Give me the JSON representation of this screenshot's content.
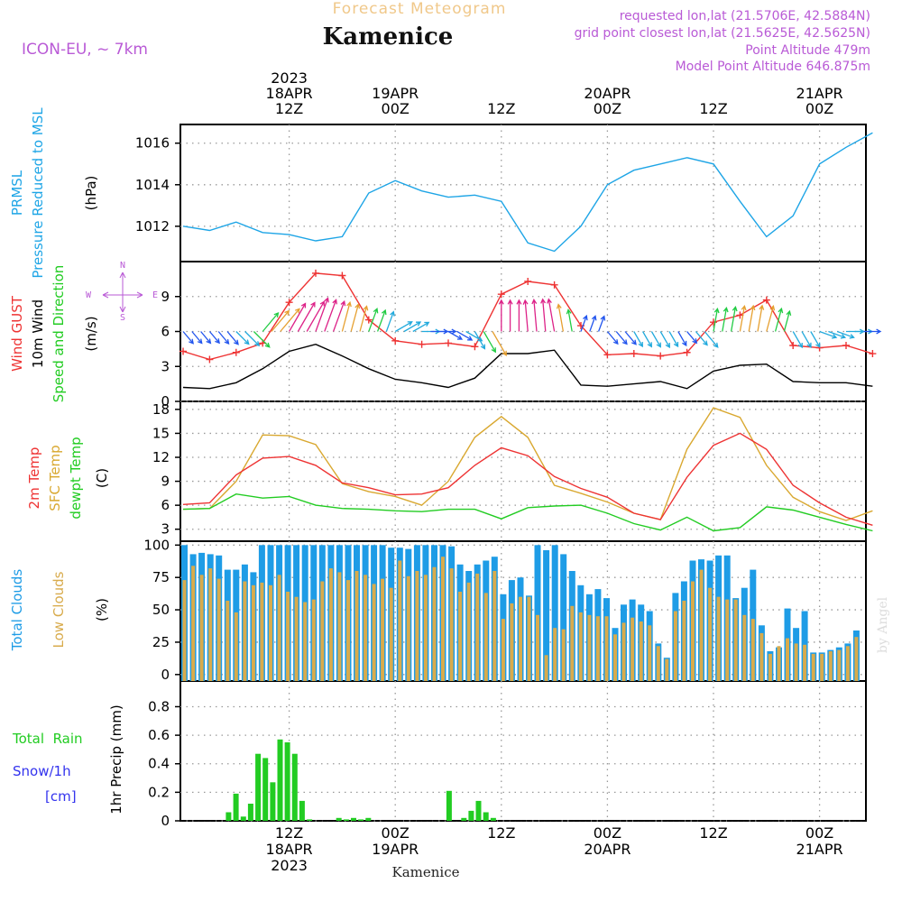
{
  "header": {
    "subtitle": "Forecast Meteogram",
    "title": "Kamenice",
    "model": "ICON-EU, ~ 7km",
    "requested": "requested lon,lat (21.5706E, 42.5884N)",
    "grid": "grid point closest lon,lat (21.5625E, 42.5625N)",
    "altitude": "Point Altitude 479m",
    "model_altitude": "Model Point Altitude 646.875m"
  },
  "time_axis": {
    "top": [
      {
        "l1": "2023",
        "l2": "18APR",
        "l3": "12Z"
      },
      {
        "l1": "",
        "l2": "19APR",
        "l3": "00Z"
      },
      {
        "l1": "",
        "l2": "",
        "l3": "12Z"
      },
      {
        "l1": "",
        "l2": "20APR",
        "l3": "00Z"
      },
      {
        "l1": "",
        "l2": "",
        "l3": "12Z"
      },
      {
        "l1": "",
        "l2": "21APR",
        "l3": "00Z"
      }
    ],
    "bottom": [
      {
        "l1": "12Z",
        "l2": "18APR",
        "l3": "2023"
      },
      {
        "l1": "00Z",
        "l2": "19APR",
        "l3": ""
      },
      {
        "l1": "12Z",
        "l2": "",
        "l3": ""
      },
      {
        "l1": "00Z",
        "l2": "20APR",
        "l3": ""
      },
      {
        "l1": "12Z",
        "l2": "",
        "l3": ""
      },
      {
        "l1": "00Z",
        "l2": "21APR",
        "l3": ""
      }
    ],
    "footer": "Kamenice"
  },
  "labels": {
    "p1": [
      "PRMSL",
      "Pressure Reduced to MSL",
      "(hPa)"
    ],
    "p2": [
      "Wind GUST",
      "10m Wind",
      "Speed and Direction",
      "(m/s)"
    ],
    "compass": {
      "n": "N",
      "s": "S",
      "w": "W",
      "e": "E"
    },
    "p3": [
      "2m Temp",
      "SFC Temp",
      "dewpt Temp",
      "(C)"
    ],
    "p4": [
      "Total Clouds",
      "Low Clouds",
      "(%)"
    ],
    "p5": {
      "rain": "Total  Rain",
      "snow": "Snow/1h",
      "unit": "[cm]",
      "axis": "1hr Precip (mm)"
    },
    "credit": "by Angel"
  },
  "colors": {
    "pressure": "#1ea5e6",
    "gust": "#ee3333",
    "wind": "#000000",
    "t2m": "#ee3333",
    "tsfc": "#d9a830",
    "dewpt": "#22cc22",
    "total_clouds": "#1e9ce6",
    "low_clouds": "#d8ab4c",
    "rain": "#22cc22",
    "snow": "#3333ee",
    "header_purple": "#b95ad6",
    "subtitle": "#f0c88a"
  },
  "chart_data": [
    {
      "type": "line",
      "name": "PRMSL",
      "ylabel": "(hPa)",
      "yticks": [
        1012,
        1014,
        1016
      ],
      "ylim": [
        1010.3,
        1016.9
      ],
      "x_hours": [
        0,
        3,
        6,
        9,
        12,
        15,
        18,
        21,
        24,
        27,
        30,
        33,
        36,
        39,
        42,
        45,
        48,
        51,
        54,
        57,
        60,
        63,
        66,
        69,
        72,
        75,
        78
      ],
      "series": [
        {
          "name": "PRMSL",
          "values": [
            1012.0,
            1011.8,
            1012.2,
            1011.7,
            1011.6,
            1011.3,
            1011.5,
            1013.6,
            1014.2,
            1013.7,
            1013.4,
            1013.5,
            1013.2,
            1011.2,
            1010.8,
            1012.0,
            1014.0,
            1014.7,
            1015.0,
            1015.3,
            1015.0,
            1013.2,
            1011.5,
            1012.5,
            1015.0,
            1015.8,
            1016.5
          ]
        }
      ]
    },
    {
      "type": "line",
      "name": "Wind",
      "ylabel": "(m/s)",
      "yticks": [
        0,
        3,
        6,
        9
      ],
      "ylim": [
        0,
        12
      ],
      "x_hours": [
        0,
        3,
        6,
        9,
        12,
        15,
        18,
        21,
        24,
        27,
        30,
        33,
        36,
        39,
        42,
        45,
        48,
        51,
        54,
        57,
        60,
        63,
        66,
        69,
        72,
        75,
        78
      ],
      "series": [
        {
          "name": "Wind GUST",
          "values": [
            4.3,
            3.6,
            4.2,
            5.0,
            8.5,
            11.0,
            10.8,
            7.0,
            5.2,
            4.9,
            5.0,
            4.7,
            9.2,
            10.3,
            10.0,
            6.5,
            4.0,
            4.1,
            3.9,
            4.2,
            6.8,
            7.4,
            8.7,
            4.8,
            4.6,
            4.8,
            4.1
          ]
        },
        {
          "name": "10m Wind",
          "values": [
            1.2,
            1.1,
            1.6,
            2.8,
            4.3,
            4.9,
            3.9,
            2.8,
            1.9,
            1.6,
            1.2,
            2.0,
            4.1,
            4.1,
            4.4,
            1.4,
            1.3,
            1.5,
            1.7,
            1.1,
            2.6,
            3.1,
            3.2,
            1.7,
            1.6,
            1.6,
            1.3
          ]
        }
      ],
      "wind_dir_deg": [
        320,
        320,
        315,
        220,
        210,
        200,
        195,
        200,
        240,
        270,
        300,
        330,
        180,
        175,
        170,
        200,
        320,
        330,
        330,
        320,
        190,
        190,
        195,
        330,
        290,
        270,
        280
      ]
    },
    {
      "type": "line",
      "name": "Temperature",
      "ylabel": "(C)",
      "yticks": [
        3,
        6,
        9,
        12,
        15,
        18
      ],
      "ylim": [
        1.5,
        19
      ],
      "x_hours": [
        0,
        3,
        6,
        9,
        12,
        15,
        18,
        21,
        24,
        27,
        30,
        33,
        36,
        39,
        42,
        45,
        48,
        51,
        54,
        57,
        60,
        63,
        66,
        69,
        72,
        75,
        78
      ],
      "series": [
        {
          "name": "2m Temp",
          "values": [
            6.1,
            6.3,
            9.8,
            11.9,
            12.1,
            11.0,
            8.8,
            8.2,
            7.3,
            7.4,
            8.2,
            11.0,
            13.2,
            12.2,
            9.6,
            8.1,
            7.0,
            5.0,
            4.2,
            9.5,
            13.5,
            15.0,
            13.0,
            8.5,
            6.3,
            4.5,
            3.5
          ]
        },
        {
          "name": "SFC Temp",
          "values": [
            5.5,
            5.6,
            9.0,
            14.8,
            14.7,
            13.6,
            8.7,
            7.7,
            7.1,
            6.0,
            9.0,
            14.5,
            17.1,
            14.5,
            8.5,
            7.5,
            6.4,
            5.0,
            4.2,
            13.0,
            18.2,
            17.0,
            11.0,
            7.0,
            5.2,
            4.1,
            5.3
          ]
        },
        {
          "name": "dewpt Temp",
          "values": [
            5.5,
            5.6,
            7.4,
            6.9,
            7.1,
            6.0,
            5.6,
            5.5,
            5.3,
            5.2,
            5.5,
            5.5,
            4.3,
            5.7,
            5.9,
            6.0,
            5.0,
            3.7,
            2.9,
            4.5,
            2.8,
            3.2,
            5.8,
            5.4,
            4.5,
            3.6,
            2.8
          ]
        }
      ]
    },
    {
      "type": "bar",
      "name": "Clouds",
      "ylabel": "(%)",
      "yticks": [
        0,
        25,
        50,
        75,
        100
      ],
      "ylim": [
        -5,
        103
      ],
      "series": [
        {
          "name": "Total Clouds",
          "values": [
            100,
            93,
            94,
            93,
            92,
            81,
            81,
            85,
            79,
            100,
            100,
            100,
            100,
            100,
            100,
            100,
            100,
            100,
            100,
            100,
            100,
            100,
            100,
            100,
            98,
            98,
            97,
            100,
            100,
            100,
            100,
            99,
            85,
            80,
            85,
            88,
            91,
            62,
            73,
            75,
            61,
            100,
            96,
            100,
            93,
            80,
            69,
            62,
            66,
            59,
            36,
            54,
            58,
            54,
            49,
            24,
            13,
            63,
            72,
            88,
            89,
            88,
            92,
            92,
            59,
            67,
            81,
            38,
            18,
            21,
            51,
            36,
            49,
            17,
            17,
            19,
            21,
            24,
            34,
            36,
            22
          ]
        },
        {
          "name": "Low Clouds",
          "values": [
            73,
            84,
            77,
            82,
            74,
            57,
            48,
            72,
            69,
            71,
            69,
            77,
            64,
            60,
            56,
            58,
            72,
            82,
            79,
            73,
            80,
            77,
            70,
            74,
            67,
            88,
            76,
            80,
            77,
            83,
            91,
            82,
            64,
            71,
            78,
            63,
            80,
            43,
            55,
            60,
            60,
            46,
            15,
            36,
            35,
            53,
            48,
            46,
            45,
            45,
            31,
            40,
            44,
            41,
            38,
            22,
            12,
            49,
            57,
            72,
            81,
            67,
            60,
            58,
            58,
            46,
            43,
            32,
            16,
            22,
            28,
            24,
            23,
            16,
            16,
            18,
            19,
            22,
            29,
            35,
            21
          ]
        }
      ]
    },
    {
      "type": "bar",
      "name": "Precipitation",
      "ylabel": "1hr Precip (mm)",
      "yticks": [
        0,
        0.2,
        0.4,
        0.6,
        0.8
      ],
      "ylim": [
        0,
        0.98
      ],
      "series": [
        {
          "name": "Total Rain",
          "values": [
            0,
            0,
            0,
            0.06,
            0.19,
            0.03,
            0.12,
            0.47,
            0.44,
            0.27,
            0.57,
            0.55,
            0.47,
            0.14,
            0.01,
            0,
            0,
            0,
            0.02,
            0.01,
            0.02,
            0.01,
            0.02,
            0,
            0,
            0,
            0,
            0,
            0,
            0,
            0,
            0,
            0,
            0.21,
            0,
            0.02,
            0.07,
            0.14,
            0.06,
            0.02
          ]
        },
        {
          "name": "Snow/1h",
          "values": []
        }
      ]
    }
  ]
}
